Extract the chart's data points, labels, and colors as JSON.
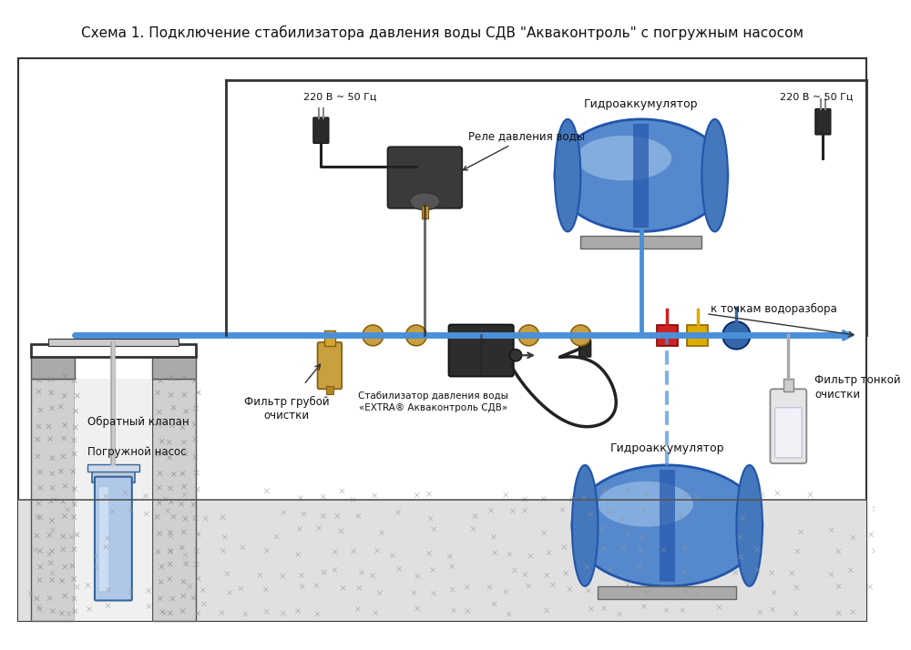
{
  "title": "Схема 1. Подключение стабилизатора давления воды СДВ \"Акваконтроль\" с погружным насосом",
  "bg_color": "#ffffff",
  "title_fontsize": 11,
  "labels": {
    "power1": "220 В ~ 50 Гц",
    "power2": "220 В ~ 50 Гц",
    "relay": "Реле давления воды",
    "hydro1": "Гидроаккумулятор",
    "hydro2": "Гидроаккумулятор",
    "filter_rough": "Фильтр грубой\nочистки",
    "filter_fine": "Фильтр тонкой\nочистки",
    "check_valve": "Обратный клапан",
    "pump": "Погружной насос",
    "stabilizer": "Стабилизатор давления воды\n«EXTRA® Акваконтроль СДВ»",
    "water_points": "к точкам водоразбора"
  },
  "pipe_blue": "#4a90d9",
  "pipe_arrow": "#2060b0",
  "cable_black": "#222222",
  "brass_color": "#c8a040",
  "hydro_body": "#5588cc",
  "hydro_dark": "#2255aa",
  "hydro_hl": "#aaccee",
  "relay_color": "#444444",
  "valve_red": "#cc2222",
  "valve_yellow": "#ddaa00",
  "valve_blue": "#3366aa",
  "shelf_color": "#aaaaaa",
  "text_color": "#111111",
  "wall_fill": "#d0d0d0",
  "ground_fill": "#e0e0e0",
  "box_border": "#333333"
}
